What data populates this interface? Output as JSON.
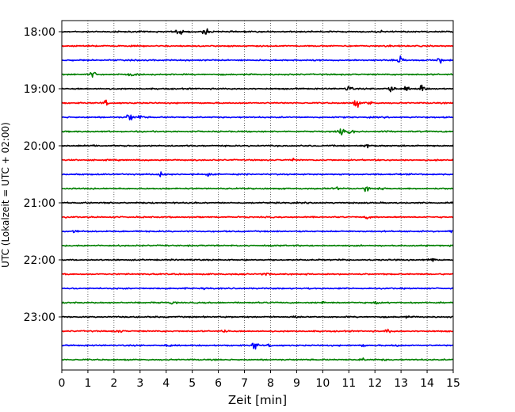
{
  "chart_data": {
    "type": "line",
    "title": "",
    "xlabel": "Zeit  [min]",
    "ylabel": "UTC (Lokalzeit = UTC + 02:00)",
    "xlim": [
      0,
      15
    ],
    "x_ticks": [
      0,
      1,
      2,
      3,
      4,
      5,
      6,
      7,
      8,
      9,
      10,
      11,
      12,
      13,
      14,
      15
    ],
    "grid": "vertical-dotted",
    "legend": "none",
    "y_tick_labels": [
      "18:00",
      "19:00",
      "20:00",
      "21:00",
      "22:00",
      "23:00"
    ],
    "trace_color_cycle": [
      "#000000",
      "#ff0000",
      "#0000ff",
      "#008000"
    ],
    "traces": [
      {
        "start": "18:00",
        "events": [
          [
            4.5,
            6
          ],
          [
            5.5,
            5
          ],
          [
            10.0,
            1
          ],
          [
            12.2,
            1
          ]
        ]
      },
      {
        "start": "18:15",
        "events": [
          [
            12.5,
            1
          ]
        ]
      },
      {
        "start": "18:30",
        "events": [
          [
            13.0,
            7
          ],
          [
            14.5,
            4
          ]
        ]
      },
      {
        "start": "18:45",
        "events": [
          [
            1.2,
            5
          ],
          [
            2.7,
            2
          ]
        ]
      },
      {
        "start": "19:00",
        "events": [
          [
            11.0,
            5
          ],
          [
            12.6,
            7
          ],
          [
            13.2,
            3
          ],
          [
            13.8,
            6
          ]
        ]
      },
      {
        "start": "19:15",
        "events": [
          [
            1.7,
            4
          ],
          [
            11.3,
            6
          ],
          [
            11.8,
            4
          ]
        ]
      },
      {
        "start": "19:30",
        "events": [
          [
            2.6,
            7
          ],
          [
            3.0,
            3
          ]
        ]
      },
      {
        "start": "19:45",
        "events": [
          [
            10.7,
            5
          ],
          [
            11.1,
            3
          ],
          [
            12.4,
            1
          ]
        ]
      },
      {
        "start": "20:00",
        "events": [
          [
            1.2,
            2
          ],
          [
            11.7,
            2
          ]
        ]
      },
      {
        "start": "20:15",
        "events": [
          [
            8.9,
            2
          ]
        ]
      },
      {
        "start": "20:30",
        "events": [
          [
            3.8,
            4
          ],
          [
            5.6,
            2
          ]
        ]
      },
      {
        "start": "20:45",
        "events": [
          [
            10.5,
            2
          ],
          [
            11.7,
            5
          ],
          [
            12.2,
            2
          ]
        ]
      },
      {
        "start": "21:00",
        "events": []
      },
      {
        "start": "21:15",
        "events": [
          [
            11.7,
            2
          ]
        ]
      },
      {
        "start": "21:30",
        "events": [
          [
            0.5,
            2
          ],
          [
            14.9,
            2
          ]
        ]
      },
      {
        "start": "21:45",
        "events": []
      },
      {
        "start": "22:00",
        "events": [
          [
            14.2,
            3
          ]
        ]
      },
      {
        "start": "22:15",
        "events": [
          [
            7.8,
            2
          ]
        ]
      },
      {
        "start": "22:30",
        "events": [
          [
            4.2,
            2
          ],
          [
            5.5,
            1
          ],
          [
            9.5,
            1
          ]
        ]
      },
      {
        "start": "22:45",
        "events": [
          [
            4.2,
            2
          ],
          [
            10.0,
            2
          ],
          [
            12.1,
            2
          ]
        ]
      },
      {
        "start": "23:00",
        "events": [
          [
            9.0,
            2
          ],
          [
            13.2,
            1
          ]
        ]
      },
      {
        "start": "23:15",
        "events": [
          [
            2.2,
            2
          ],
          [
            6.3,
            2
          ],
          [
            12.5,
            3
          ]
        ]
      },
      {
        "start": "23:30",
        "events": [
          [
            4.1,
            2
          ],
          [
            7.4,
            7
          ],
          [
            8.0,
            2
          ],
          [
            11.5,
            2
          ],
          [
            12.8,
            2
          ]
        ]
      },
      {
        "start": "23:45",
        "events": [
          [
            11.5,
            2
          ],
          [
            12.3,
            1
          ]
        ]
      }
    ]
  }
}
